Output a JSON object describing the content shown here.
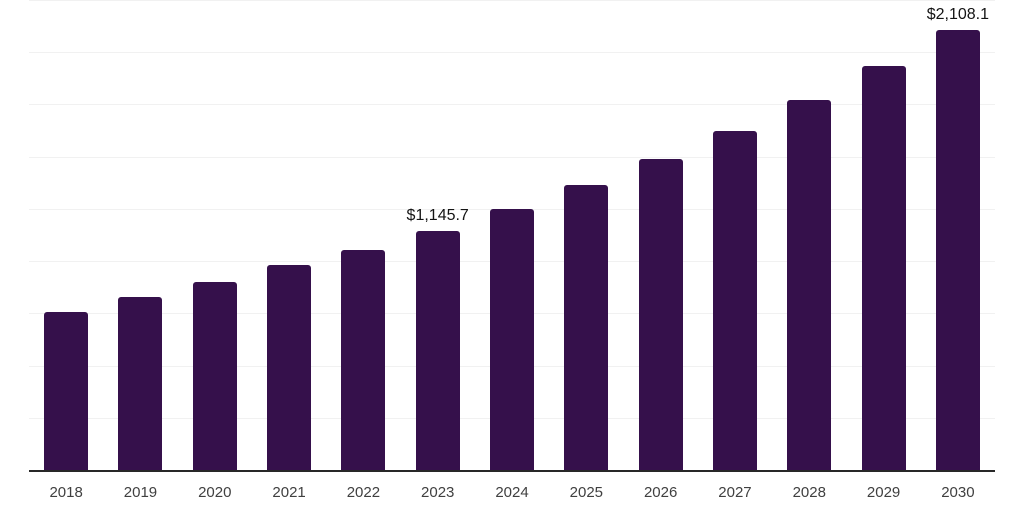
{
  "chart_data": {
    "type": "bar",
    "title": "",
    "xlabel": "",
    "ylabel": "",
    "categories": [
      "2018",
      "2019",
      "2020",
      "2021",
      "2022",
      "2023",
      "2024",
      "2025",
      "2026",
      "2027",
      "2028",
      "2029",
      "2030"
    ],
    "values": [
      755,
      826,
      898,
      980,
      1051,
      1145.7,
      1250,
      1363.7,
      1487.8,
      1623.2,
      1770.9,
      1932.1,
      2108.1
    ],
    "data_labels": {
      "2023": "$1,145.7",
      "2030": "$2,108.1"
    },
    "ylim": [
      0,
      2250
    ],
    "gridline_step": 250,
    "grid": true,
    "legend": "none",
    "colors": {
      "bar": "#35104B",
      "axis_line": "#282828",
      "gridline": "#f1f1f1",
      "value_label": "#141414",
      "tick_label": "#404040",
      "background": "#ffffff"
    }
  }
}
